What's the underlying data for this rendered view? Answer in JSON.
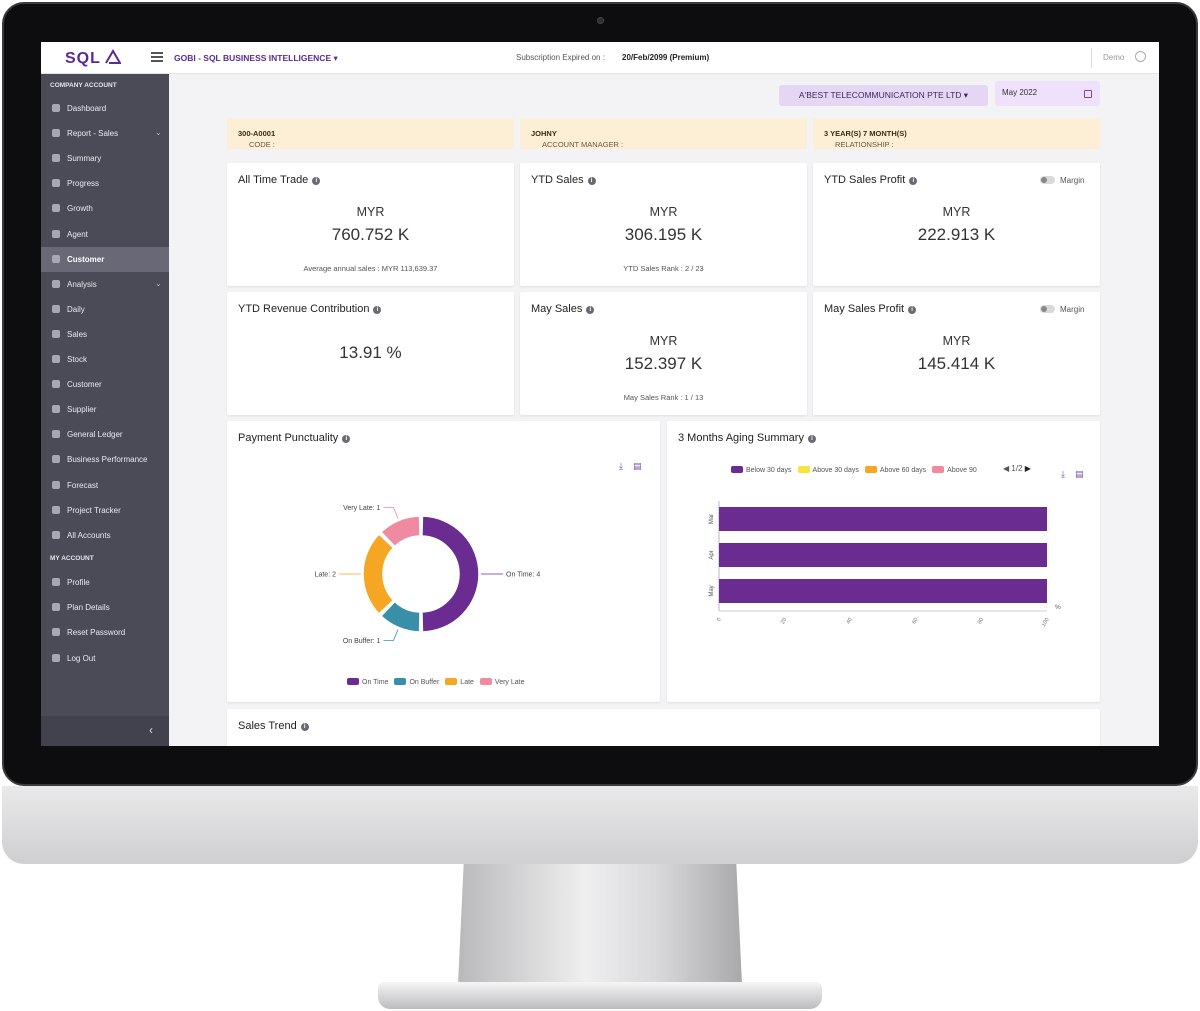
{
  "app": {
    "logo": "SQL",
    "title": "GOBI - SQL BUSINESS INTELLIGENCE",
    "subscription_label": "Subscription Expired on :",
    "subscription_value": "20/Feb/2099 (Premium)",
    "user": "Demo"
  },
  "sidebar": {
    "section_company": "COMPANY ACCOUNT",
    "section_account": "MY ACCOUNT",
    "items": [
      {
        "label": "Dashboard"
      },
      {
        "label": "Report - Sales"
      },
      {
        "label": "Summary"
      },
      {
        "label": "Progress"
      },
      {
        "label": "Growth"
      },
      {
        "label": "Agent"
      },
      {
        "label": "Customer"
      },
      {
        "label": "Analysis"
      },
      {
        "label": "Daily"
      },
      {
        "label": "Sales"
      },
      {
        "label": "Stock"
      },
      {
        "label": "Customer"
      },
      {
        "label": "Supplier"
      },
      {
        "label": "General Ledger"
      },
      {
        "label": "Business Performance"
      },
      {
        "label": "Forecast"
      },
      {
        "label": "Project Tracker"
      },
      {
        "label": "All Accounts"
      }
    ],
    "account_items": [
      {
        "label": "Profile"
      },
      {
        "label": "Plan Details"
      },
      {
        "label": "Reset Password"
      },
      {
        "label": "Log Out"
      }
    ],
    "collapse_glyph": "‹"
  },
  "filters": {
    "company": "A'BEST TELECOMMUNICATION PTE LTD",
    "period": "May 2022"
  },
  "info": {
    "code_label": "CODE :",
    "code_value": "300-A0001",
    "manager_label": "ACCOUNT MANAGER :",
    "manager_value": "JOHNY",
    "relationship_label": "RELATIONSHIP :",
    "relationship_value": "3 YEAR(S) 7 MONTH(S)"
  },
  "cards": {
    "all_time": {
      "title": "All Time Trade",
      "currency": "MYR",
      "value": "760.752 K",
      "note": "Average annual sales : MYR 113,639.37"
    },
    "ytd_sales": {
      "title": "YTD Sales",
      "currency": "MYR",
      "value": "306.195 K",
      "note": "YTD Sales Rank : 2 / 23"
    },
    "ytd_profit": {
      "title": "YTD Sales Profit",
      "currency": "MYR",
      "value": "222.913 K",
      "toggle": "Margin"
    },
    "ytd_contrib": {
      "title": "YTD Revenue Contribution",
      "value": "13.91 %"
    },
    "may_sales": {
      "title": "May Sales",
      "currency": "MYR",
      "value": "152.397 K",
      "note": "May Sales Rank : 1 / 13"
    },
    "may_profit": {
      "title": "May Sales Profit",
      "currency": "MYR",
      "value": "145.414 K",
      "toggle": "Margin"
    },
    "sales_trend": {
      "title": "Sales Trend"
    },
    "info_glyph": "i"
  },
  "colors": {
    "purple": "#6a2c91",
    "teal": "#3a8fa8",
    "orange": "#f5a623",
    "pink": "#f08aa0",
    "yellow": "#f7e43a"
  },
  "chart_data": [
    {
      "type": "pie",
      "title": "Payment Punctuality",
      "categories": [
        "On Time",
        "On Buffer",
        "Late",
        "Very Late"
      ],
      "values": [
        4,
        1,
        2,
        1
      ],
      "slice_labels": [
        "On Time: 4",
        "On Buffer: 1",
        "Late: 2",
        "Very Late: 1"
      ],
      "legend": "bottom",
      "donut": true
    },
    {
      "type": "bar",
      "orientation": "horizontal",
      "stacked": true,
      "title": "3 Months Aging Summary",
      "categories": [
        "Mar",
        "Apr",
        "May"
      ],
      "series": [
        {
          "name": "Below 30 days",
          "values": [
            100,
            100,
            100
          ]
        },
        {
          "name": "Above 30 days",
          "values": [
            0,
            0,
            0
          ]
        },
        {
          "name": "Above 60 days",
          "values": [
            0,
            0,
            0
          ]
        },
        {
          "name": "Above 90",
          "values": [
            0,
            0,
            0
          ]
        }
      ],
      "xlim": [
        0,
        100
      ],
      "xticks": [
        "0",
        "20",
        "40",
        "60",
        "80",
        "100"
      ],
      "xunit": "%",
      "legend": "top",
      "legend_page": "1/2"
    }
  ]
}
